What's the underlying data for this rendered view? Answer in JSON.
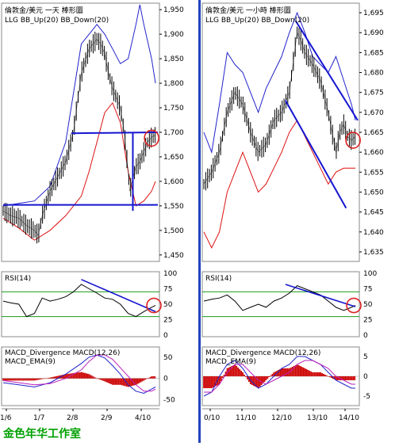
{
  "caption": "金色年华工作室",
  "colors": {
    "price": "#000000",
    "bb_up": "#2222cc",
    "bb_down": "#dd1111",
    "trend": "#1515d0",
    "rsi_line": "#000000",
    "rsi_levels": "#1a9a1a",
    "macd_line": "#2222cc",
    "ema_line": "#bb22bb",
    "hist": "#cc0000",
    "circle": "#dd2222",
    "divider": "#2244bb"
  },
  "panels": {
    "daily": {
      "title": "倫敦金/美元 一天 棒形圖",
      "legend": "LLG  BB_Up(20)  BB_Down(20)",
      "rsi_label": "RSI(14)",
      "macd_label1": "MACD_Divergence  MACD(12,26)",
      "macd_label2": "MACD_EMA(9)",
      "x_ticks": [
        "1/6",
        "1/7",
        "2/8",
        "2/9",
        "4/10"
      ],
      "price_ticks": [
        "1,950",
        "1,900",
        "1,850",
        "1,800",
        "1,750",
        "1,700",
        "1,650",
        "1,600",
        "1,550",
        "1,500",
        "1,450"
      ],
      "rsi_ticks": [
        "100",
        "75",
        "50",
        "25",
        "0"
      ],
      "macd_ticks": [
        "50",
        "0",
        "-50"
      ]
    },
    "hourly": {
      "title": "倫敦金/美元 一小時 棒形圖",
      "legend": "LLG  BB_Up(20)  BB_Down(20)",
      "rsi_label": "RSI(14)",
      "macd_label1": "MACD_Divergence  MACD(12,26)",
      "macd_label2": "MACD_EMA(9)",
      "x_ticks": [
        "0/10",
        "11/10",
        "12/10",
        "13/10",
        "14/10"
      ],
      "price_ticks": [
        "1,695",
        "1,690",
        "1,685",
        "1,680",
        "1,675",
        "1,670",
        "1,665",
        "1,660",
        "1,655",
        "1,650",
        "1,645",
        "1,640",
        "1,635"
      ],
      "rsi_ticks": [
        "100",
        "75",
        "50",
        "25",
        "0"
      ],
      "macd_ticks": [
        "5",
        "0",
        "-5"
      ]
    }
  },
  "chart_data": [
    {
      "type": "line",
      "title": "倫敦金/美元 一天 棒形圖",
      "series": [
        {
          "name": "LLG",
          "x": [
            0,
            10,
            20,
            30,
            40,
            45,
            50,
            60,
            70,
            80,
            90,
            100,
            110,
            120,
            125,
            130,
            135,
            140,
            150,
            155,
            160,
            162,
            165,
            170,
            175,
            180,
            185,
            190,
            195
          ],
          "values": [
            1540,
            1530,
            1525,
            1510,
            1500,
            1490,
            1530,
            1580,
            1610,
            1640,
            1700,
            1820,
            1870,
            1890,
            1880,
            1860,
            1820,
            1790,
            1750,
            1700,
            1620,
            1580,
            1600,
            1630,
            1640,
            1660,
            1680,
            1690,
            1695
          ]
        },
        {
          "name": "BB_Up(20)",
          "x": [
            0,
            20,
            40,
            60,
            80,
            100,
            110,
            120,
            130,
            140,
            150,
            160,
            170,
            175,
            180,
            190,
            195
          ],
          "values": [
            1550,
            1555,
            1560,
            1590,
            1680,
            1880,
            1900,
            1920,
            1900,
            1870,
            1840,
            1850,
            1920,
            1960,
            1920,
            1850,
            1800
          ]
        },
        {
          "name": "BB_Down(20)",
          "x": [
            0,
            20,
            40,
            60,
            80,
            100,
            110,
            120,
            130,
            140,
            150,
            160,
            170,
            180,
            190,
            195
          ],
          "values": [
            1525,
            1505,
            1480,
            1500,
            1530,
            1570,
            1620,
            1680,
            1740,
            1760,
            1720,
            1620,
            1550,
            1560,
            1580,
            1600
          ]
        }
      ],
      "xlim": [
        0,
        197
      ],
      "ylim": [
        1440,
        1960
      ],
      "trendlines": [
        {
          "x": [
            87,
            198
          ],
          "values": [
            1698,
            1700
          ]
        },
        {
          "x": [
            0,
            198
          ],
          "values": [
            1552,
            1552
          ]
        },
        {
          "x": [
            166,
            166
          ],
          "values": [
            1700,
            1540
          ]
        }
      ],
      "rsi": {
        "x": [
          0,
          10,
          20,
          30,
          40,
          50,
          60,
          70,
          80,
          90,
          100,
          110,
          120,
          130,
          140,
          150,
          160,
          170,
          180,
          190,
          195
        ],
        "values": [
          55,
          52,
          50,
          30,
          35,
          60,
          55,
          58,
          62,
          70,
          82,
          75,
          68,
          60,
          58,
          50,
          35,
          30,
          38,
          45,
          48
        ],
        "levels": [
          70,
          30
        ],
        "ylim": [
          0,
          100
        ],
        "trend": {
          "x": [
            100,
            195
          ],
          "values": [
            90,
            38
          ]
        }
      },
      "macd": {
        "x": [
          0,
          20,
          40,
          60,
          80,
          100,
          110,
          120,
          130,
          140,
          150,
          160,
          170,
          180,
          190,
          195
        ],
        "macd": [
          -10,
          -15,
          -20,
          -10,
          10,
          35,
          50,
          55,
          48,
          30,
          10,
          -15,
          -30,
          -35,
          -25,
          -20
        ],
        "ema": [
          -5,
          -10,
          -15,
          -12,
          0,
          20,
          40,
          55,
          55,
          45,
          25,
          5,
          -15,
          -30,
          -30,
          -25
        ],
        "hist": [
          -5,
          -5,
          -5,
          2,
          10,
          15,
          10,
          0,
          -7,
          -15,
          -15,
          -20,
          -15,
          -5,
          5,
          5
        ],
        "ylim": [
          -60,
          70
        ]
      },
      "circle_at": {
        "x": 190,
        "value": 1688
      }
    },
    {
      "type": "line",
      "title": "倫敦金/美元 一小時 棒形圖",
      "series": [
        {
          "name": "LLG",
          "x": [
            0,
            10,
            20,
            30,
            40,
            50,
            60,
            70,
            80,
            90,
            100,
            110,
            120,
            125,
            130,
            140,
            150,
            160,
            170,
            175,
            180,
            185,
            190,
            195
          ],
          "values": [
            1652,
            1655,
            1660,
            1670,
            1675,
            1672,
            1665,
            1660,
            1662,
            1668,
            1670,
            1675,
            1690,
            1688,
            1685,
            1682,
            1678,
            1670,
            1660,
            1665,
            1667,
            1664,
            1663,
            1664
          ]
        },
        {
          "name": "BB_Up(20)",
          "x": [
            0,
            10,
            20,
            30,
            40,
            50,
            60,
            70,
            80,
            90,
            100,
            110,
            120,
            130,
            140,
            150,
            160,
            170,
            180,
            190,
            195
          ],
          "values": [
            1665,
            1660,
            1672,
            1685,
            1682,
            1680,
            1675,
            1670,
            1676,
            1680,
            1684,
            1690,
            1695,
            1690,
            1684,
            1682,
            1680,
            1684,
            1678,
            1672,
            1668
          ]
        },
        {
          "name": "BB_Down(20)",
          "x": [
            0,
            10,
            20,
            30,
            40,
            50,
            60,
            70,
            80,
            90,
            100,
            110,
            120,
            130,
            140,
            150,
            160,
            170,
            180,
            190,
            195
          ],
          "values": [
            1640,
            1636,
            1640,
            1650,
            1655,
            1660,
            1655,
            1650,
            1652,
            1656,
            1660,
            1665,
            1668,
            1664,
            1660,
            1656,
            1652,
            1655,
            1656,
            1656,
            1656
          ]
        }
      ],
      "xlim": [
        0,
        197
      ],
      "ylim": [
        1633,
        1697
      ],
      "trendlines": [
        {
          "x": [
            118,
            198
          ],
          "values": [
            1693,
            1668
          ]
        },
        {
          "x": [
            105,
            183
          ],
          "values": [
            1673,
            1646
          ]
        }
      ],
      "rsi": {
        "x": [
          0,
          10,
          20,
          30,
          40,
          50,
          60,
          70,
          80,
          90,
          100,
          110,
          120,
          130,
          140,
          150,
          160,
          170,
          180,
          190,
          195
        ],
        "values": [
          55,
          58,
          60,
          65,
          55,
          40,
          45,
          50,
          45,
          55,
          60,
          68,
          80,
          75,
          70,
          65,
          55,
          45,
          40,
          45,
          48
        ],
        "levels": [
          70,
          30
        ],
        "ylim": [
          0,
          100
        ],
        "trend": {
          "x": [
            105,
            195
          ],
          "values": [
            82,
            46
          ]
        }
      },
      "macd": {
        "x": [
          0,
          10,
          20,
          30,
          40,
          50,
          60,
          70,
          80,
          90,
          100,
          110,
          120,
          130,
          140,
          150,
          160,
          170,
          180,
          190,
          195
        ],
        "macd": [
          -5,
          -4,
          0,
          3,
          4,
          2,
          -1,
          -3,
          -2,
          0,
          2,
          3,
          5,
          5,
          4,
          3,
          1,
          -1,
          -2,
          -3,
          -3
        ],
        "ema": [
          -4,
          -4,
          -2,
          1,
          3,
          3,
          1,
          -1,
          -2,
          -1,
          0,
          1,
          3,
          4,
          4,
          3,
          2,
          0,
          -1,
          -2,
          -2
        ],
        "hist": [
          -3,
          -3,
          -2,
          2,
          3,
          1,
          -2,
          -3,
          -1,
          1,
          2,
          2,
          3,
          2,
          1,
          1,
          0,
          -1,
          -1,
          -1,
          -1
        ],
        "ylim": [
          -7,
          7
        ]
      },
      "circle_at": {
        "x": 192,
        "value": 1663
      }
    }
  ]
}
